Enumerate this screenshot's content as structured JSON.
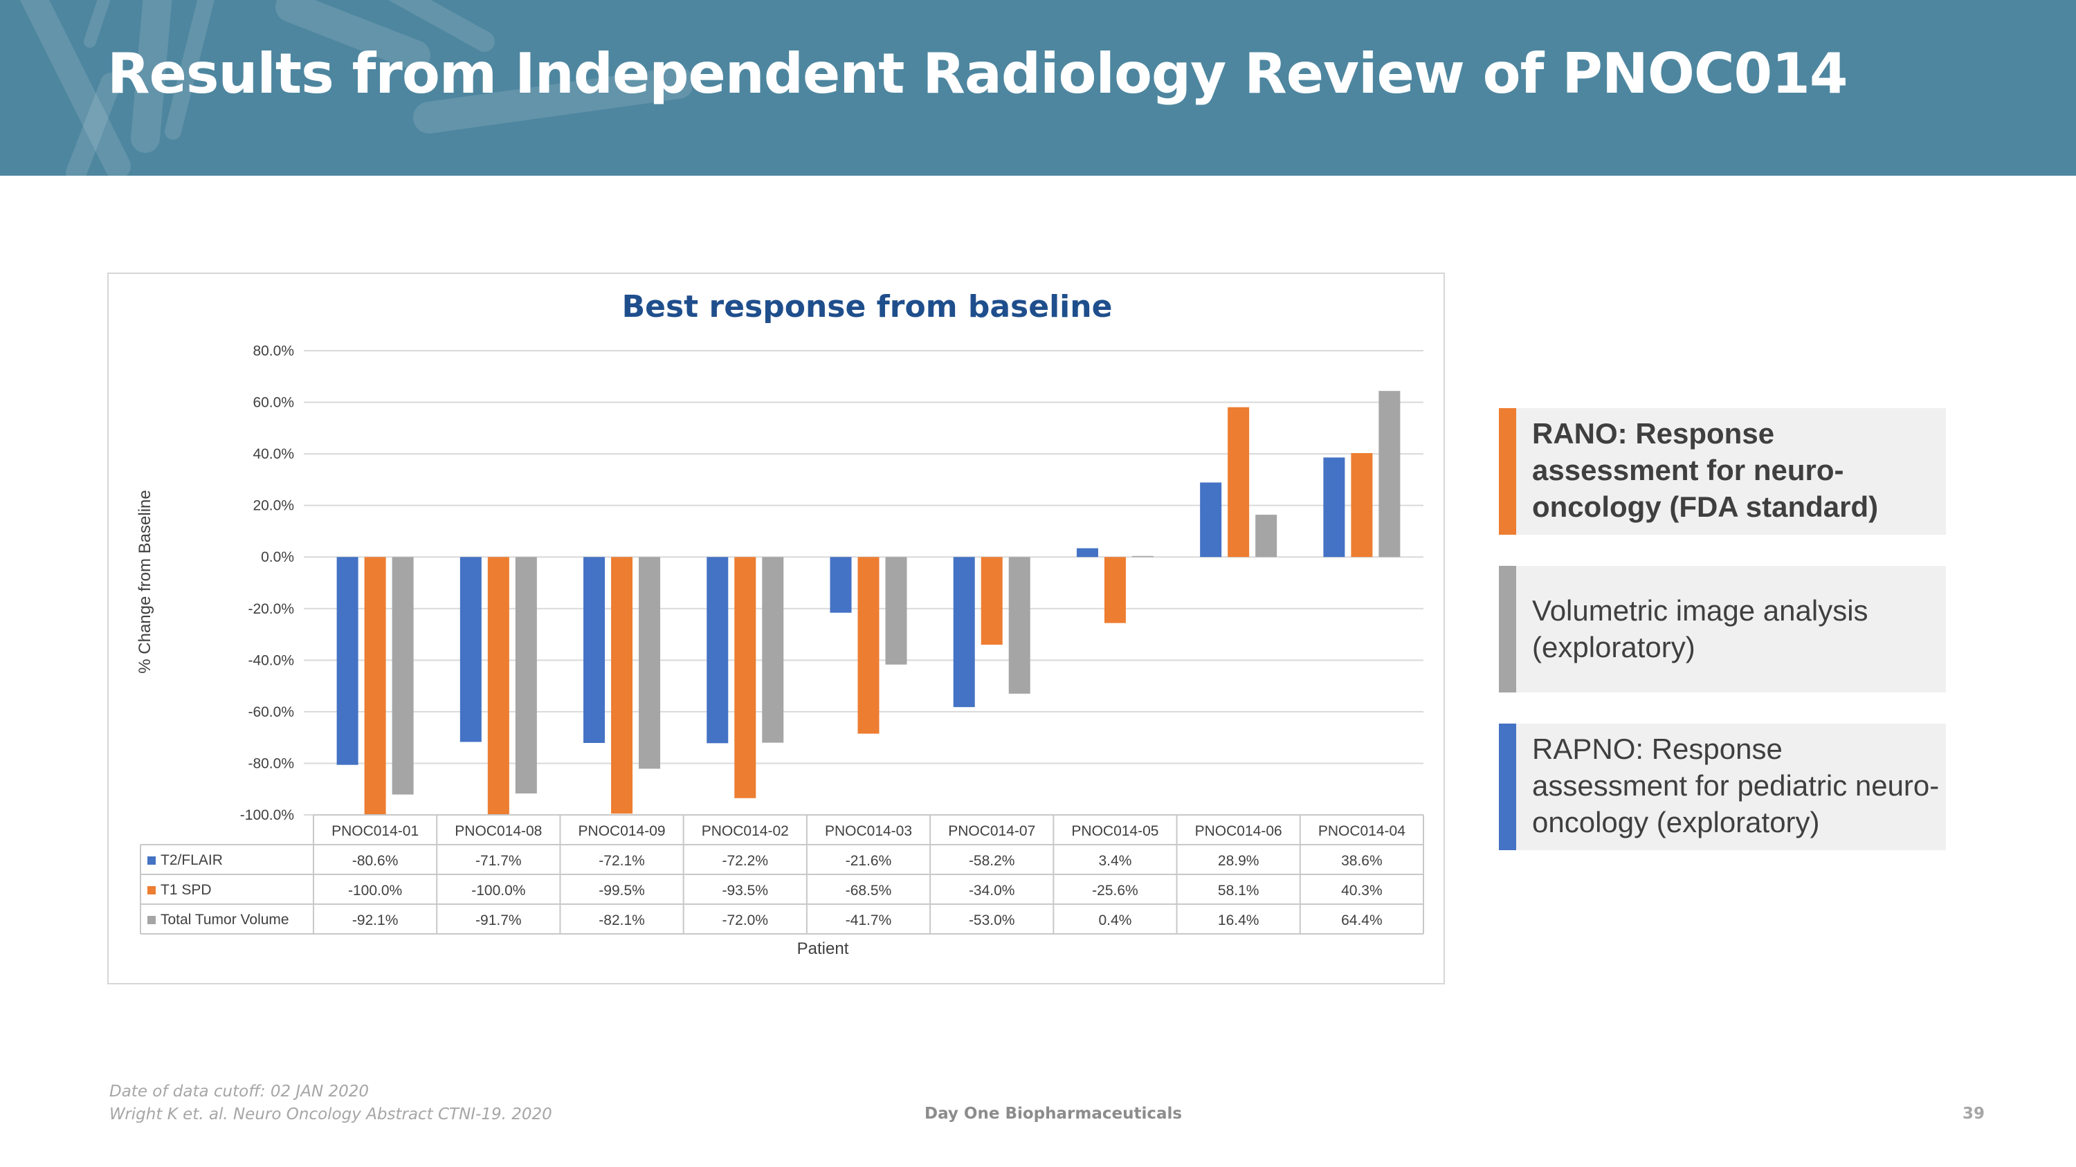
{
  "slide": {
    "title": "Results from Independent Radiology Review of PNOC014",
    "footnote_line1": "Date of data cutoff:  02 JAN 2020",
    "footnote_line2": "Wright K et. al.  Neuro Oncology Abstract CTNI-19. 2020",
    "company": "Day One Biopharmaceuticals",
    "page_number": "39",
    "header_color": "#4e869f"
  },
  "legend": [
    {
      "text": "RANO: Response assessment for neuro-oncology (FDA standard)",
      "color": "#ed7d31",
      "bold": true
    },
    {
      "text": "Volumetric image analysis (exploratory)",
      "color": "#a5a5a5",
      "bold": false
    },
    {
      "text": "RAPNO: Response assessment for pediatric neuro-oncology (exploratory)",
      "color": "#4472c4",
      "bold": false
    }
  ],
  "chart_data": {
    "type": "bar",
    "title": "Best response from baseline",
    "xlabel": "Patient",
    "ylabel": "% Change from Baseline",
    "ylim": [
      -100,
      80
    ],
    "y_ticks": [
      "80.0%",
      "60.0%",
      "40.0%",
      "20.0%",
      "0.0%",
      "-20.0%",
      "-40.0%",
      "-60.0%",
      "-80.0%",
      "-100.0%"
    ],
    "grid": true,
    "categories": [
      "PNOC014-01",
      "PNOC014-08",
      "PNOC014-09",
      "PNOC014-02",
      "PNOC014-03",
      "PNOC014-07",
      "PNOC014-05",
      "PNOC014-06",
      "PNOC014-04"
    ],
    "series": [
      {
        "name": "T2/FLAIR",
        "color": "#4472c4",
        "values": [
          -80.6,
          -71.7,
          -72.1,
          -72.2,
          -21.6,
          -58.2,
          3.4,
          28.9,
          38.6
        ],
        "labels": [
          "-80.6%",
          "-71.7%",
          "-72.1%",
          "-72.2%",
          "-21.6%",
          "-58.2%",
          "3.4%",
          "28.9%",
          "38.6%"
        ]
      },
      {
        "name": "T1 SPD",
        "color": "#ed7d31",
        "values": [
          -100.0,
          -100.0,
          -99.5,
          -93.5,
          -68.5,
          -34.0,
          -25.6,
          58.1,
          40.3
        ],
        "labels": [
          "-100.0%",
          "-100.0%",
          "-99.5%",
          "-93.5%",
          "-68.5%",
          "-34.0%",
          "-25.6%",
          "58.1%",
          "40.3%"
        ]
      },
      {
        "name": "Total Tumor Volume",
        "color": "#a5a5a5",
        "values": [
          -92.1,
          -91.7,
          -82.1,
          -72.0,
          -41.7,
          -53.0,
          0.4,
          16.4,
          64.4
        ],
        "labels": [
          "-92.1%",
          "-91.7%",
          "-82.1%",
          "-72.0%",
          "-41.7%",
          "-53.0%",
          "0.4%",
          "16.4%",
          "64.4%"
        ]
      }
    ]
  }
}
